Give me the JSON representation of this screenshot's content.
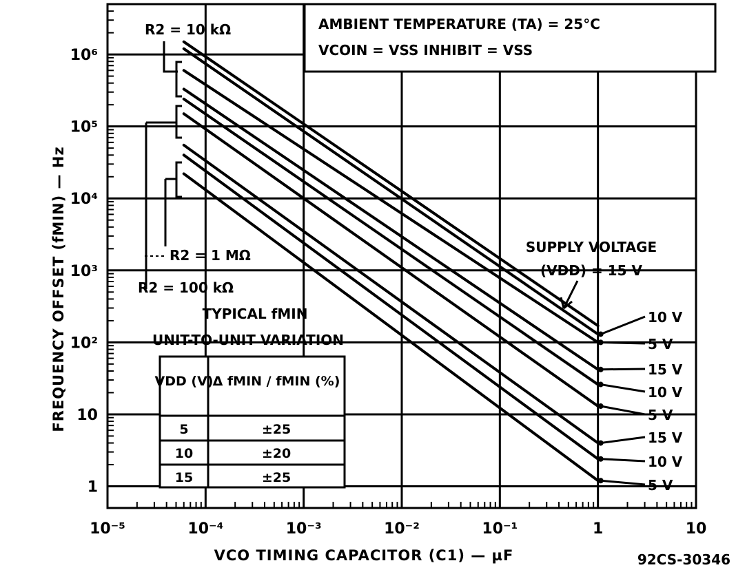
{
  "chart_data": {
    "type": "line",
    "x_scale": "log",
    "y_scale": "log",
    "xlim": [
      1e-05,
      10
    ],
    "ylim": [
      0.5,
      5000000
    ],
    "grid": true,
    "xlabel": "VCO TIMING CAPACITOR (C1) — µF",
    "ylabel": "FREQUENCY OFFSET (fMIN) — Hz",
    "x_ticks": [
      {
        "value": 1e-05,
        "label": "10⁻⁵"
      },
      {
        "value": 0.0001,
        "label": "10⁻⁴"
      },
      {
        "value": 0.001,
        "label": "10⁻³"
      },
      {
        "value": 0.01,
        "label": "10⁻²"
      },
      {
        "value": 0.1,
        "label": "10⁻¹"
      },
      {
        "value": 1,
        "label": "1"
      },
      {
        "value": 10,
        "label": "10"
      }
    ],
    "y_ticks": [
      {
        "value": 1,
        "label": "1"
      },
      {
        "value": 10,
        "label": "10"
      },
      {
        "value": 100,
        "label": "10²"
      },
      {
        "value": 1000,
        "label": "10³"
      },
      {
        "value": 10000,
        "label": "10⁴"
      },
      {
        "value": 100000,
        "label": "10⁵"
      },
      {
        "value": 1000000,
        "label": "10⁶"
      }
    ],
    "series": [
      {
        "group": "R2 = 10 kΩ",
        "vdd": "15 V",
        "points": [
          [
            6e-05,
            1500000
          ],
          [
            1,
            170
          ]
        ]
      },
      {
        "group": "R2 = 10 kΩ",
        "vdd": "10 V",
        "points": [
          [
            6e-05,
            1200000
          ],
          [
            1,
            130
          ]
        ]
      },
      {
        "group": "R2 = 10 kΩ",
        "vdd": "5 V",
        "points": [
          [
            6e-05,
            600000
          ],
          [
            1,
            100
          ]
        ]
      },
      {
        "group": "R2 = 100 kΩ",
        "vdd": "15 V",
        "points": [
          [
            6e-05,
            330000
          ],
          [
            1,
            42
          ]
        ]
      },
      {
        "group": "R2 = 100 kΩ",
        "vdd": "10 V",
        "points": [
          [
            6e-05,
            240000
          ],
          [
            1,
            26
          ]
        ]
      },
      {
        "group": "R2 = 100 kΩ",
        "vdd": "5 V",
        "points": [
          [
            6e-05,
            150000
          ],
          [
            1,
            13
          ]
        ]
      },
      {
        "group": "R2 = 1 MΩ",
        "vdd": "15 V",
        "points": [
          [
            6e-05,
            55000
          ],
          [
            1,
            4
          ]
        ]
      },
      {
        "group": "R2 = 1 MΩ",
        "vdd": "10 V",
        "points": [
          [
            6e-05,
            40000
          ],
          [
            1,
            2.4
          ]
        ]
      },
      {
        "group": "R2 = 1 MΩ",
        "vdd": "5 V",
        "points": [
          [
            6e-05,
            22000
          ],
          [
            1,
            1.2
          ]
        ]
      }
    ],
    "annotations": {
      "r2_10k": "R2 = 10 kΩ",
      "r2_1m": "R2 = 1 MΩ",
      "r2_100k": "R2 = 100 kΩ",
      "ambient_line1": "AMBIENT TEMPERATURE (TA) = 25°C",
      "ambient_line2": "VCOIN = VSS INHIBIT = VSS",
      "supply_line1": "SUPPLY VOLTAGE",
      "supply_line2": "(VDD) = 15 V",
      "typical_line1": "TYPICAL fMIN",
      "typical_line2": "UNIT-TO-UNIT VARIATION",
      "curve_labels": [
        "10 V",
        "5 V",
        "15 V",
        "10 V",
        "5 V",
        "15 V",
        "10 V",
        "5 V"
      ],
      "figure_code": "92CS-30346"
    },
    "variation_table": {
      "headers": [
        "VDD (V)",
        "Δ fMIN / fMIN (%)"
      ],
      "rows": [
        [
          "5",
          "±25"
        ],
        [
          "10",
          "±20"
        ],
        [
          "15",
          "±25"
        ]
      ]
    }
  }
}
